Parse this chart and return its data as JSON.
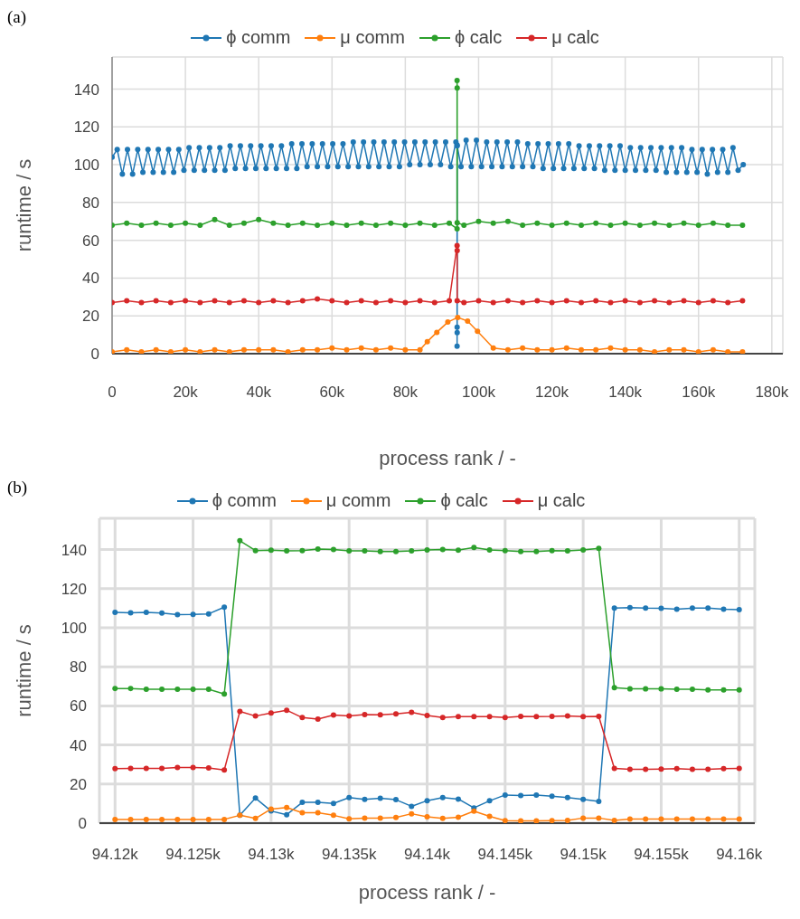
{
  "chart_data": [
    {
      "type": "line",
      "title": "(a)",
      "xlabel": "process rank / -",
      "ylabel": "runtime / s",
      "xlim": [
        0,
        183000
      ],
      "ylim": [
        0,
        157
      ],
      "xticks": [
        0,
        {
          "value": 20000,
          "label": "20k"
        },
        {
          "value": 40000,
          "label": "40k"
        },
        {
          "value": 60000,
          "label": "60k"
        },
        {
          "value": 80000,
          "label": "80k"
        },
        {
          "value": 100000,
          "label": "100k"
        },
        {
          "value": 120000,
          "label": "120k"
        },
        {
          "value": 140000,
          "label": "140k"
        },
        {
          "value": 160000,
          "label": "160k"
        },
        {
          "value": 180000,
          "label": "180k"
        }
      ],
      "yticks": [
        0,
        20,
        40,
        60,
        80,
        100,
        120,
        140
      ],
      "grid": true,
      "legend": "top",
      "marker": "circle",
      "line_style": "solid",
      "series": [
        {
          "name": "ϕ comm",
          "color": "#1f77b4",
          "x": [
            0,
            1400,
            2800,
            4200,
            5600,
            7000,
            8400,
            9800,
            11200,
            12600,
            14000,
            15400,
            16800,
            18200,
            19600,
            21000,
            22400,
            23800,
            25200,
            26600,
            28000,
            29400,
            30800,
            32200,
            33600,
            35000,
            36400,
            37800,
            39200,
            40600,
            42000,
            43400,
            44800,
            46200,
            47600,
            49000,
            50400,
            51800,
            53200,
            54600,
            56000,
            57400,
            58800,
            60200,
            61600,
            63000,
            64400,
            65800,
            67200,
            68600,
            70000,
            71400,
            72800,
            74200,
            75600,
            77000,
            78400,
            79800,
            81200,
            82600,
            84000,
            85400,
            86800,
            88200,
            89600,
            91000,
            92400,
            93800,
            94127,
            94128,
            94140,
            94151,
            94152,
            95200,
            96600,
            98000,
            99400,
            100800,
            102200,
            103600,
            105000,
            106400,
            107800,
            109200,
            110600,
            112000,
            113400,
            114800,
            116200,
            117600,
            119000,
            120400,
            121800,
            123200,
            124600,
            126000,
            127400,
            128800,
            130200,
            131600,
            133000,
            134400,
            135800,
            137200,
            138600,
            140000,
            141400,
            142800,
            144200,
            145600,
            147000,
            148400,
            149800,
            151200,
            152600,
            154000,
            155400,
            156800,
            158200,
            159600,
            161000,
            162400,
            163800,
            165200,
            166600,
            168000,
            169400,
            170800,
            172200
          ],
          "values": [
            104,
            108,
            95,
            108,
            95,
            108,
            96,
            108,
            96,
            108,
            96,
            108,
            96,
            108,
            97,
            109,
            97,
            109,
            97,
            109,
            97,
            109,
            97,
            110,
            98,
            110,
            98,
            110,
            98,
            110,
            98,
            110,
            98,
            110,
            98,
            111,
            98,
            111,
            99,
            111,
            99,
            111,
            99,
            111,
            99,
            111,
            99,
            112,
            99,
            112,
            99,
            112,
            99,
            112,
            99,
            112,
            99,
            112,
            100,
            112,
            100,
            112,
            100,
            112,
            100,
            112,
            99,
            112,
            110.5,
            4,
            14,
            11.1,
            110,
            99,
            113,
            99,
            113,
            99,
            112,
            99,
            112,
            99,
            112,
            99,
            112,
            99,
            111,
            99,
            111,
            98,
            111,
            98,
            111,
            98,
            111,
            98,
            110,
            98,
            110,
            98,
            110,
            97,
            110,
            97,
            110,
            97,
            109,
            97,
            109,
            97,
            109,
            97,
            109,
            96,
            109,
            96,
            109,
            96,
            108,
            96,
            108,
            95,
            108,
            96,
            108,
            96,
            109,
            97,
            100
          ]
        },
        {
          "name": "μ comm",
          "color": "#ff7f0e",
          "x": [
            0,
            4000,
            8000,
            12000,
            16000,
            20000,
            24000,
            28000,
            32000,
            36000,
            40000,
            44000,
            48000,
            52000,
            56000,
            60000,
            64000,
            68000,
            72000,
            76000,
            80000,
            84000,
            86000,
            88600,
            91600,
            94300,
            97000,
            99700,
            104000,
            108000,
            112000,
            116000,
            120000,
            124000,
            128000,
            132000,
            136000,
            140000,
            144000,
            148000,
            152000,
            156000,
            160000,
            164000,
            168000,
            172000
          ],
          "values": [
            1,
            2,
            1,
            2,
            1,
            2,
            1,
            2,
            1,
            2,
            2,
            2,
            1,
            2,
            2,
            3,
            2,
            3,
            2,
            3,
            2,
            2,
            6.4,
            11.3,
            16.7,
            19.2,
            17.2,
            11.8,
            3,
            2,
            3,
            2,
            2,
            3,
            2,
            2,
            3,
            2,
            2,
            1,
            2,
            2,
            1,
            2,
            1,
            1
          ]
        },
        {
          "name": "ϕ calc",
          "color": "#2ca02c",
          "x": [
            0,
            4000,
            8000,
            12000,
            16000,
            20000,
            24000,
            28000,
            32000,
            36000,
            40000,
            44000,
            48000,
            52000,
            56000,
            60000,
            64000,
            68000,
            72000,
            76000,
            80000,
            84000,
            88000,
            92000,
            94127,
            94128,
            94151,
            94152,
            96000,
            100000,
            104000,
            108000,
            112000,
            116000,
            120000,
            124000,
            128000,
            132000,
            136000,
            140000,
            144000,
            148000,
            152000,
            156000,
            160000,
            164000,
            168000,
            172000
          ],
          "values": [
            68,
            69,
            68,
            69,
            68,
            69,
            68,
            71,
            68,
            69,
            71,
            69,
            68,
            69,
            68,
            69,
            68,
            69,
            68,
            69,
            68,
            69,
            68,
            69,
            66.1,
            144.5,
            140.6,
            69.3,
            68,
            70,
            69,
            70,
            68,
            69,
            68,
            69,
            68,
            69,
            68,
            69,
            68,
            69,
            68,
            69,
            68,
            69,
            68,
            68
          ]
        },
        {
          "name": "μ calc",
          "color": "#d62728",
          "x": [
            0,
            4000,
            8000,
            12000,
            16000,
            20000,
            24000,
            28000,
            32000,
            36000,
            40000,
            44000,
            48000,
            52000,
            56000,
            60000,
            64000,
            68000,
            72000,
            76000,
            80000,
            84000,
            88000,
            92000,
            94128,
            94151,
            94152,
            96000,
            100000,
            104000,
            108000,
            112000,
            116000,
            120000,
            124000,
            128000,
            132000,
            136000,
            140000,
            144000,
            148000,
            152000,
            156000,
            160000,
            164000,
            168000,
            172000
          ],
          "values": [
            27,
            28,
            27,
            28,
            27,
            28,
            27,
            28,
            27,
            28,
            27,
            28,
            27,
            28,
            29,
            28,
            27,
            28,
            27,
            28,
            27,
            28,
            27,
            28,
            57.2,
            54.6,
            28,
            27,
            28,
            27,
            28,
            27,
            28,
            27,
            28,
            27,
            28,
            27,
            28,
            27,
            28,
            27,
            28,
            27,
            28,
            27,
            28
          ]
        }
      ]
    },
    {
      "type": "line",
      "title": "(b)",
      "xlabel": "process rank / -",
      "ylabel": "runtime / s",
      "xlim": [
        94119,
        94161
      ],
      "ylim": [
        0,
        156
      ],
      "xticks": [
        {
          "value": 94120,
          "label": "94.12k"
        },
        {
          "value": 94125,
          "label": "94.125k"
        },
        {
          "value": 94130,
          "label": "94.13k"
        },
        {
          "value": 94135,
          "label": "94.135k"
        },
        {
          "value": 94140,
          "label": "94.14k"
        },
        {
          "value": 94145,
          "label": "94.145k"
        },
        {
          "value": 94150,
          "label": "94.15k"
        },
        {
          "value": 94155,
          "label": "94.155k"
        },
        {
          "value": 94160,
          "label": "94.16k"
        }
      ],
      "yticks": [
        0,
        20,
        40,
        60,
        80,
        100,
        120,
        140
      ],
      "grid": true,
      "legend": "top",
      "marker": "circle",
      "line_style": "solid",
      "x": [
        94120,
        94121,
        94122,
        94123,
        94124,
        94125,
        94126,
        94127,
        94128,
        94129,
        94130,
        94131,
        94132,
        94133,
        94134,
        94135,
        94136,
        94137,
        94138,
        94139,
        94140,
        94141,
        94142,
        94143,
        94144,
        94145,
        94146,
        94147,
        94148,
        94149,
        94150,
        94151,
        94152,
        94153,
        94154,
        94155,
        94156,
        94157,
        94158,
        94159,
        94160
      ],
      "series": [
        {
          "name": "ϕ comm",
          "color": "#1f77b4",
          "values": [
            107.9,
            107.6,
            107.8,
            107.5,
            106.7,
            106.8,
            107.1,
            110.5,
            4.0,
            12.8,
            6.2,
            4.3,
            10.6,
            10.6,
            10.1,
            13.1,
            12.2,
            12.7,
            12.0,
            8.6,
            11.5,
            13.1,
            12.3,
            7.8,
            11.4,
            14.4,
            14.1,
            14.4,
            13.8,
            13.1,
            12.2,
            11.1,
            110.0,
            110.3,
            110.0,
            109.9,
            109.5,
            110.0,
            110.0,
            109.5,
            109.2
          ]
        },
        {
          "name": "μ comm",
          "color": "#ff7f0e",
          "values": [
            1.9,
            1.9,
            1.9,
            1.9,
            1.9,
            1.9,
            1.9,
            1.9,
            4.0,
            2.4,
            7.2,
            8.0,
            5.3,
            5.3,
            4.0,
            2.2,
            2.6,
            2.6,
            2.9,
            4.8,
            3.2,
            2.4,
            3.0,
            6.1,
            3.5,
            1.3,
            1.1,
            1.1,
            1.3,
            1.4,
            2.6,
            2.6,
            1.4,
            2.1,
            2.1,
            2.1,
            2.1,
            2.1,
            2.1,
            2.1,
            2.1
          ]
        },
        {
          "name": "ϕ calc",
          "color": "#2ca02c",
          "values": [
            68.9,
            68.9,
            68.5,
            68.5,
            68.5,
            68.5,
            68.5,
            66.1,
            144.5,
            139.5,
            139.7,
            139.3,
            139.5,
            140.3,
            140.0,
            139.3,
            139.3,
            139.0,
            139.0,
            139.3,
            139.8,
            140.0,
            139.7,
            141.1,
            139.8,
            139.5,
            139.0,
            139.0,
            139.5,
            139.3,
            139.8,
            140.6,
            69.3,
            68.7,
            68.7,
            68.7,
            68.5,
            68.5,
            68.2,
            68.2,
            68.2
          ]
        },
        {
          "name": "μ calc",
          "color": "#d62728",
          "values": [
            27.9,
            28.0,
            28.0,
            28.0,
            28.5,
            28.5,
            28.2,
            27.2,
            57.2,
            54.8,
            56.4,
            57.8,
            54.0,
            53.2,
            55.3,
            54.9,
            55.6,
            55.4,
            55.9,
            56.7,
            55.1,
            54.0,
            54.5,
            54.5,
            54.5,
            54.0,
            54.6,
            54.5,
            54.6,
            54.9,
            54.5,
            54.6,
            28.0,
            27.5,
            27.5,
            27.7,
            27.9,
            27.5,
            27.5,
            27.9,
            28.0
          ]
        }
      ]
    }
  ]
}
